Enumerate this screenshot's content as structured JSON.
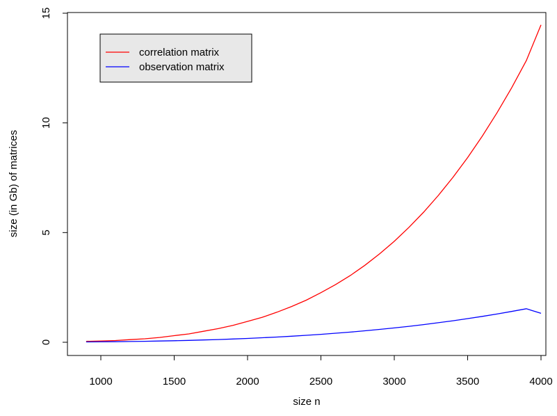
{
  "chart_data": {
    "type": "line",
    "title": "",
    "xlabel": "size n",
    "ylabel": "size (in Gb) of matrices",
    "xlim": [
      900,
      4000
    ],
    "ylim": [
      0,
      15
    ],
    "x_ticks": [
      1000,
      1500,
      2000,
      2500,
      3000,
      3500,
      4000
    ],
    "y_ticks": [
      0,
      5,
      10,
      15
    ],
    "grid": false,
    "legend_position": "top-left",
    "x": [
      900,
      1000,
      1100,
      1200,
      1300,
      1400,
      1500,
      1600,
      1700,
      1800,
      1900,
      2000,
      2100,
      2200,
      2300,
      2400,
      2500,
      2600,
      2700,
      2800,
      2900,
      3000,
      3100,
      3200,
      3300,
      3400,
      3500,
      3600,
      3700,
      3800,
      3900,
      4000
    ],
    "series": [
      {
        "name": "correlation matrix",
        "color": "#ff0000",
        "values": [
          0.04,
          0.06,
          0.08,
          0.12,
          0.16,
          0.22,
          0.3,
          0.38,
          0.5,
          0.62,
          0.77,
          0.95,
          1.14,
          1.37,
          1.63,
          1.92,
          2.26,
          2.63,
          3.04,
          3.51,
          4.03,
          4.6,
          5.24,
          5.93,
          6.69,
          7.52,
          8.42,
          9.4,
          10.46,
          11.6,
          12.84,
          14.47
        ]
      },
      {
        "name": "observation matrix",
        "color": "#0000ff",
        "values": [
          0.015,
          0.02,
          0.026,
          0.034,
          0.044,
          0.056,
          0.07,
          0.086,
          0.104,
          0.125,
          0.149,
          0.176,
          0.206,
          0.239,
          0.276,
          0.317,
          0.362,
          0.411,
          0.464,
          0.523,
          0.586,
          0.654,
          0.727,
          0.806,
          0.891,
          0.981,
          1.077,
          1.18,
          1.289,
          1.404,
          1.527,
          1.32
        ]
      }
    ]
  }
}
